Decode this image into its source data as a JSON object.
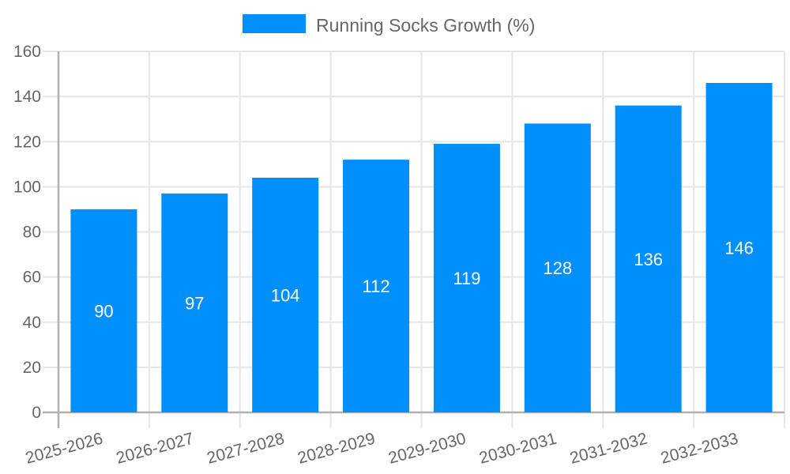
{
  "chart_data": {
    "type": "bar",
    "title": "",
    "legend_label": "Running Socks Growth (%)",
    "legend_position": "top",
    "categories": [
      "2025-2026",
      "2026-2027",
      "2027-2028",
      "2028-2029",
      "2029-2030",
      "2030-2031",
      "2031-2032",
      "2032-2033"
    ],
    "values": [
      90,
      97,
      104,
      112,
      119,
      128,
      136,
      146
    ],
    "xlabel": "",
    "ylabel": "",
    "ylim": [
      0,
      160
    ],
    "y_ticks": [
      0,
      20,
      40,
      60,
      80,
      100,
      120,
      140,
      160
    ],
    "grid": true,
    "x_label_rotation": -15,
    "colors": {
      "bar": "#008FFB",
      "bar_value_text": "#ffffff",
      "axis_text": "#666666",
      "grid_line": "#e6e6e6",
      "axis_line": "#b0b0b0",
      "background": "#ffffff"
    }
  }
}
